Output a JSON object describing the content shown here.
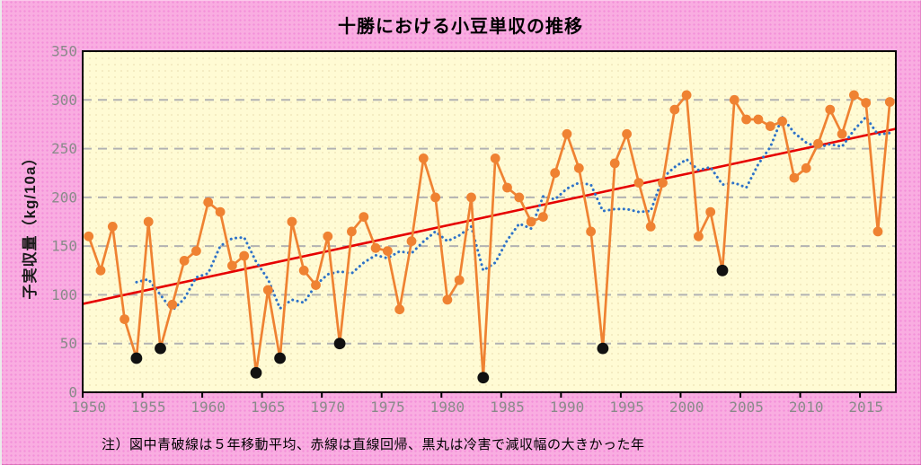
{
  "title": "十勝における小豆単収の推移",
  "note": "注）図中青破線は５年移動平均、赤線は直線回帰、黒丸は冷害で減収幅の大きかった年",
  "colors": {
    "page_bg": "#f9ade1",
    "plot_bg": "#fffbd4",
    "plot_bg_dot": "#f1e8bd",
    "grid": "#b2b2b2",
    "annual_series": "#ef8232",
    "cold_marker": "#111111",
    "moving_average": "#2e72c8",
    "trend": "#e60000",
    "tick_text": "#8a8a8a",
    "axis_border": "#000000"
  },
  "chart_data": {
    "type": "line",
    "title": "十勝における小豆単収の推移",
    "xlabel": "",
    "ylabel": "子実収量（kg/10a）",
    "ylim": [
      0,
      350
    ],
    "grid": "horizontal-dashed-every-50",
    "legend": "none (described in footnote)",
    "years": [
      1950,
      1951,
      1952,
      1953,
      1954,
      1955,
      1956,
      1957,
      1958,
      1959,
      1960,
      1961,
      1962,
      1963,
      1964,
      1965,
      1966,
      1967,
      1968,
      1969,
      1970,
      1971,
      1972,
      1973,
      1974,
      1975,
      1976,
      1977,
      1978,
      1979,
      1980,
      1981,
      1982,
      1983,
      1984,
      1985,
      1986,
      1987,
      1988,
      1989,
      1990,
      1991,
      1992,
      1993,
      1994,
      1995,
      1996,
      1997,
      1998,
      1999,
      2000,
      2001,
      2002,
      2003,
      2004,
      2005,
      2006,
      2007,
      2008,
      2009,
      2010,
      2011,
      2012,
      2013,
      2014,
      2015,
      2016,
      2017
    ],
    "values": [
      160,
      125,
      170,
      75,
      35,
      175,
      45,
      90,
      135,
      145,
      195,
      185,
      130,
      140,
      20,
      105,
      35,
      175,
      125,
      110,
      160,
      50,
      165,
      180,
      148,
      145,
      85,
      155,
      240,
      200,
      95,
      115,
      200,
      15,
      240,
      210,
      200,
      175,
      180,
      225,
      265,
      230,
      165,
      45,
      235,
      265,
      215,
      170,
      215,
      290,
      305,
      160,
      185,
      125,
      300,
      280,
      280,
      273,
      278,
      220,
      230,
      255,
      290,
      265,
      305,
      297,
      165,
      298
    ],
    "cold_damage_years": [
      1954,
      1956,
      1964,
      1966,
      1971,
      1983,
      1993,
      2003
    ],
    "moving_average_window": 5,
    "moving_average_style": "trailing, blue dotted",
    "trend_line": {
      "start_year": 1950,
      "start_value": 92,
      "end_year": 2017,
      "end_value": 269
    },
    "x_tick_labels": [
      "1950",
      "1955",
      "1960",
      "1965",
      "1970",
      "1975",
      "1980",
      "1985",
      "1990",
      "1995",
      "2000",
      "2005",
      "2010",
      "2015"
    ],
    "y_tick_labels": [
      "0",
      "50",
      "100",
      "150",
      "200",
      "250",
      "300",
      "350"
    ]
  }
}
